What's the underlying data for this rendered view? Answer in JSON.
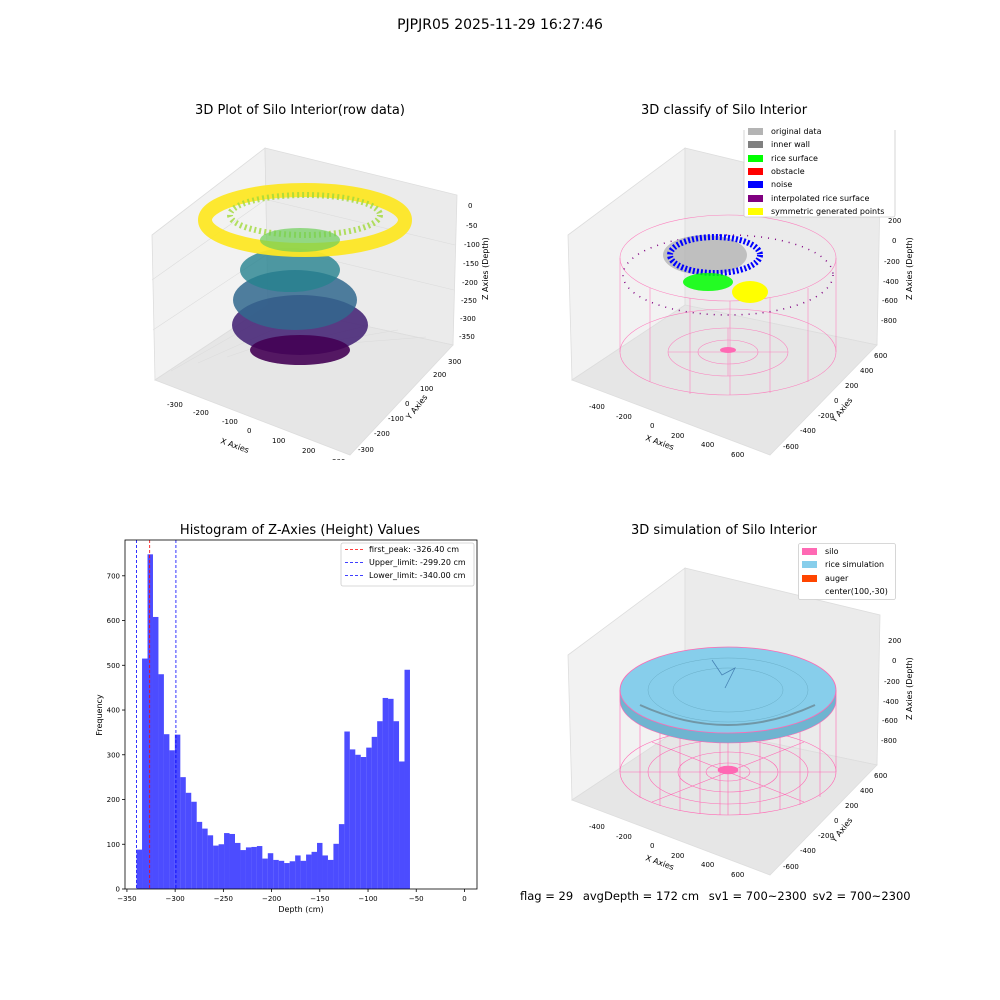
{
  "suptitle": "PJPJR05 2025-11-29 16:27:46",
  "panels": {
    "raw": {
      "title": "3D Plot of Silo Interior(row data)",
      "xlabel": "X Axies",
      "ylabel": "Y Axies",
      "zlabel": "Z Axies (Depth)",
      "xticks": [
        "-300",
        "-200",
        "-100",
        "0",
        "100",
        "200",
        "300"
      ],
      "yticks": [
        "-300",
        "-200",
        "-100",
        "0",
        "100",
        "200",
        "300"
      ],
      "zticks": [
        "0",
        "-50",
        "-100",
        "-150",
        "-200",
        "-250",
        "-300",
        "-350"
      ]
    },
    "classify": {
      "title": "3D classify of Silo Interior",
      "xlabel": "X Axies",
      "ylabel": "Y Axies",
      "zlabel": "Z Axies (Depth)",
      "xticks": [
        "-400",
        "-200",
        "0",
        "200",
        "400",
        "600"
      ],
      "yticks": [
        "-600",
        "-400",
        "-200",
        "0",
        "200",
        "400",
        "600"
      ],
      "zticks": [
        "200",
        "0",
        "-200",
        "-400",
        "-600",
        "-800"
      ],
      "legend": [
        {
          "label": "original data",
          "color": "#b4b4b4"
        },
        {
          "label": "inner wall",
          "color": "#808080"
        },
        {
          "label": "rice surface",
          "color": "#00ff00"
        },
        {
          "label": "obstacle",
          "color": "#ff0000"
        },
        {
          "label": "noise",
          "color": "#0000ff"
        },
        {
          "label": "interpolated rice surface",
          "color": "#800080"
        },
        {
          "label": "symmetric generated points",
          "color": "#ffff00"
        }
      ]
    },
    "simulation": {
      "title": "3D simulation of Silo Interior",
      "xlabel": "X Axies",
      "ylabel": "Y Axies",
      "zlabel": "Z Axies (Depth)",
      "xticks": [
        "-400",
        "-200",
        "0",
        "200",
        "400",
        "600"
      ],
      "yticks": [
        "-600",
        "-400",
        "-200",
        "0",
        "200",
        "400",
        "600"
      ],
      "zticks": [
        "200",
        "0",
        "-200",
        "-400",
        "-600",
        "-800"
      ],
      "legend": [
        {
          "label": "silo",
          "color": "#ff69b4"
        },
        {
          "label": "rice simulation",
          "color": "#87ceeb"
        },
        {
          "label": "auger",
          "color": "#ff4500"
        },
        {
          "label": "center(100,-30)",
          "color": "none"
        }
      ]
    }
  },
  "status": {
    "flag": "flag = 29",
    "avg_depth": "avgDepth = 172 cm",
    "sv1": "sv1 = 700~2300",
    "sv2": "sv2 = 700~2300"
  },
  "colors": {
    "bars": "#0000ff",
    "first_peak": "#ff0000",
    "limits": "#0000ff",
    "silo": "#ff69b4",
    "rice": "#87ceeb"
  },
  "chart_data": [
    {
      "type": "bar",
      "title": "Histogram of Z-Axies (Height) Values",
      "xlabel": "Depth (cm)",
      "ylabel": "Frequency",
      "xlim": [
        -352,
        13
      ],
      "ylim": [
        0,
        780
      ],
      "xticks": [
        -350,
        -300,
        -250,
        -200,
        -150,
        -100,
        -50,
        0
      ],
      "yticks": [
        0,
        100,
        200,
        300,
        400,
        500,
        600,
        700
      ],
      "bin_start": -340,
      "bin_width": 5.67,
      "values": [
        88,
        515,
        748,
        608,
        480,
        346,
        310,
        345,
        250,
        215,
        195,
        150,
        135,
        120,
        97,
        100,
        125,
        123,
        103,
        87,
        93,
        94,
        96,
        68,
        80,
        65,
        63,
        58,
        62,
        75,
        63,
        77,
        83,
        103,
        75,
        65,
        101,
        145,
        352,
        312,
        300,
        295,
        316,
        340,
        375,
        427,
        425,
        375,
        285,
        490
      ],
      "vlines": [
        {
          "label": "first_peak: -326.40 cm",
          "x": -326.4,
          "color": "#ff0000"
        },
        {
          "label": "Upper_limit: -299.20 cm",
          "x": -299.2,
          "color": "#0000ff"
        },
        {
          "label": "Lower_limit: -340.00 cm",
          "x": -340.0,
          "color": "#0000ff"
        }
      ]
    }
  ]
}
